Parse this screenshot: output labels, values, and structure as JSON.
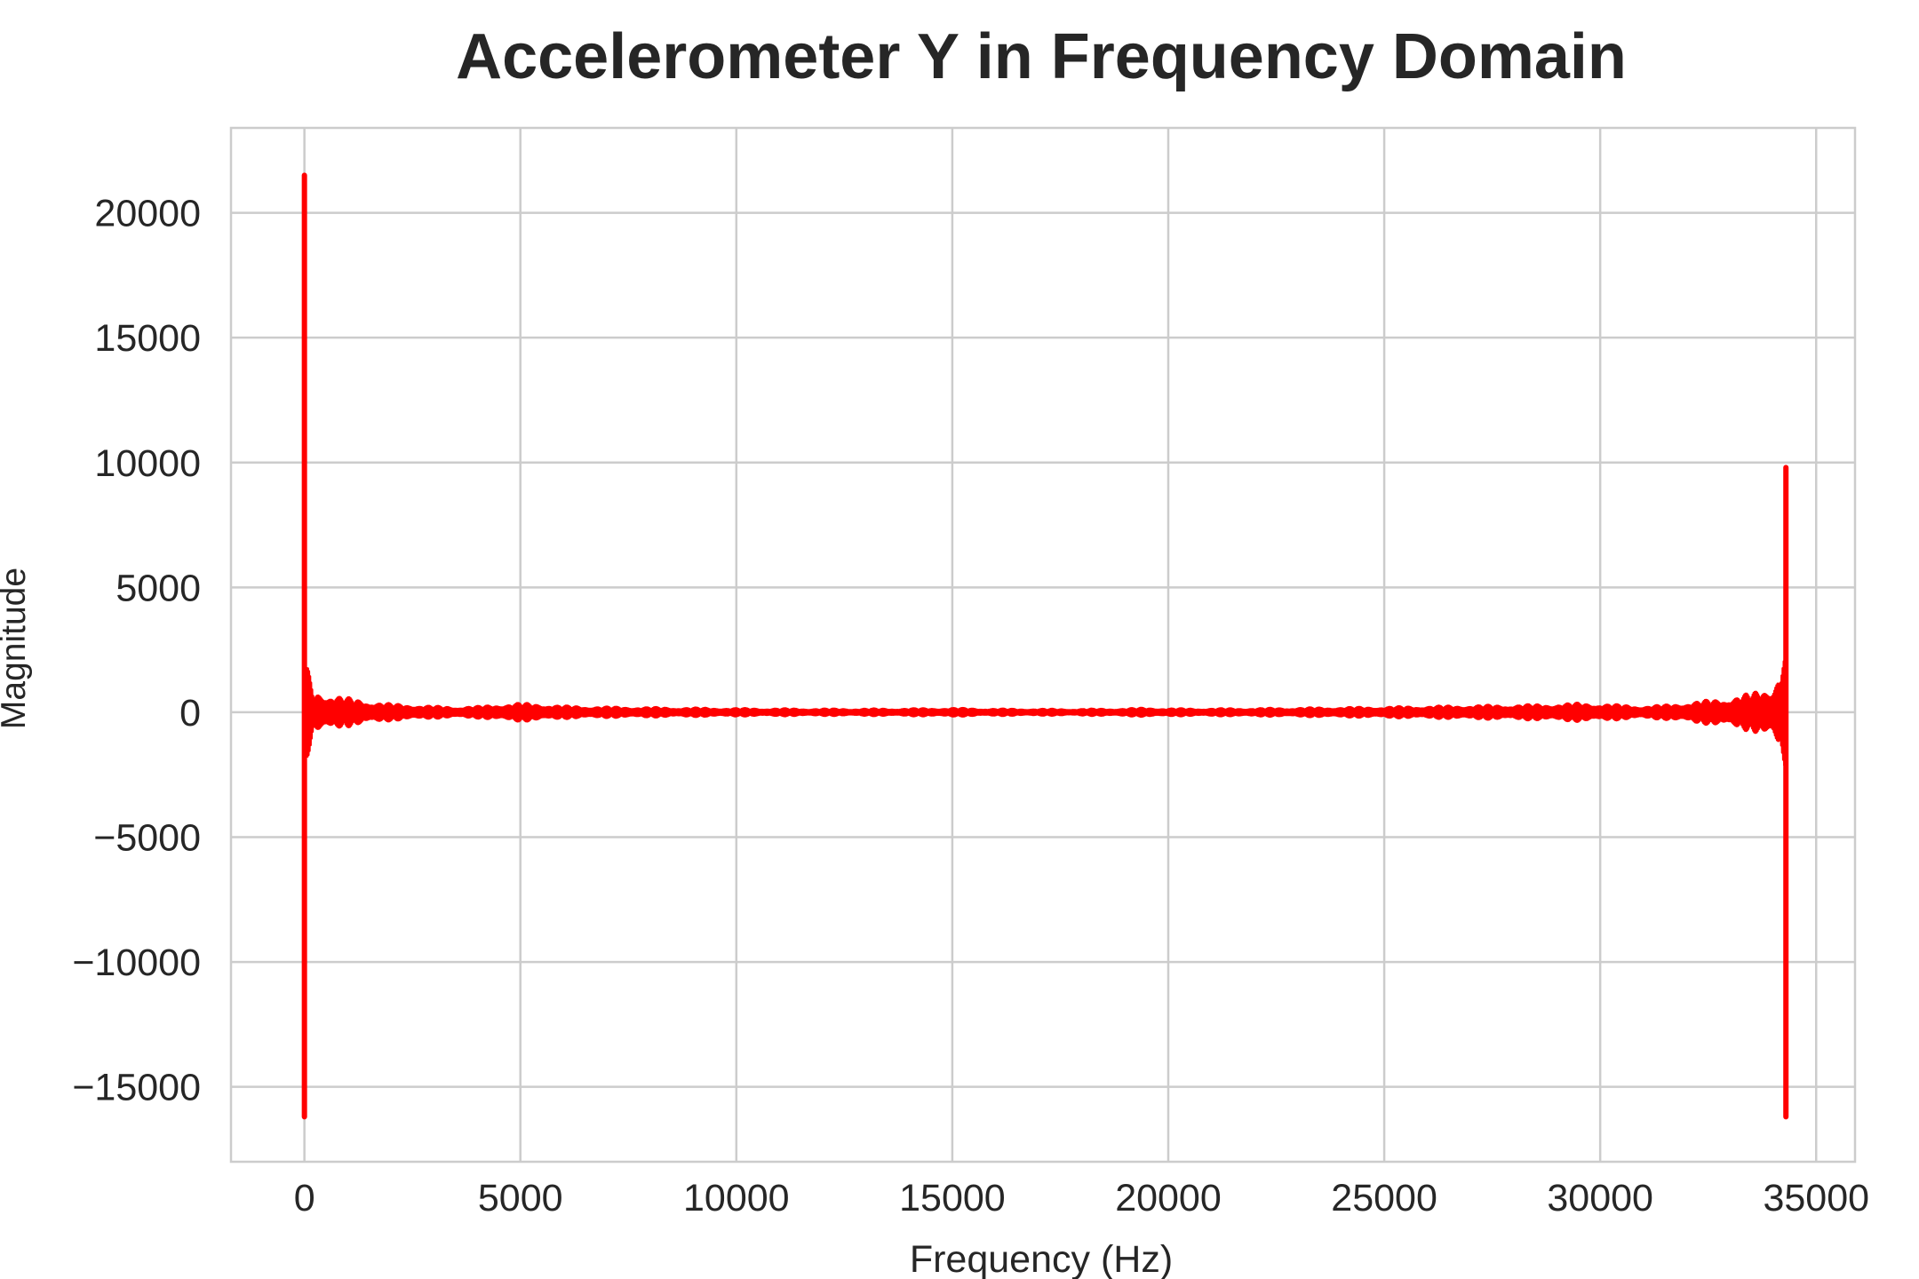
{
  "chart_data": {
    "type": "line",
    "title": "Accelerometer Y in Frequency Domain",
    "xlabel": "Frequency (Hz)",
    "ylabel": "Magnitude",
    "xlim": [
      -1700,
      35900
    ],
    "ylim": [
      -18000,
      23400
    ],
    "grid": true,
    "legend": "none",
    "x_ticks": [
      0,
      5000,
      10000,
      15000,
      20000,
      25000,
      30000,
      35000
    ],
    "x_tick_labels": [
      "0",
      "5000",
      "10000",
      "15000",
      "20000",
      "25000",
      "30000",
      "35000"
    ],
    "y_ticks": [
      20000,
      15000,
      10000,
      5000,
      0,
      -5000,
      -10000,
      -15000
    ],
    "y_tick_labels": [
      "20000",
      "15000",
      "10000",
      "5000",
      "0",
      "−5000",
      "−10000",
      "−15000"
    ],
    "series": [
      {
        "color": "#ff0000",
        "x_range": [
          0,
          34300
        ],
        "spikes": [
          {
            "x": 0,
            "y_max": 21500,
            "y_min": -16200
          },
          {
            "x": 34300,
            "y_max": 9800,
            "y_min": -16200
          }
        ],
        "envelope_x": [
          0,
          200,
          400,
          700,
          1000,
          1500,
          2000,
          2500,
          3000,
          3500,
          4000,
          4500,
          5000,
          5500,
          6000,
          7000,
          8000,
          9000,
          10000,
          11000,
          12000,
          13000,
          14000,
          15000,
          16000,
          17000,
          18000,
          19000,
          19500,
          20000,
          21000,
          22000,
          23000,
          24000,
          25000,
          26000,
          27000,
          28000,
          29000,
          29500,
          30000,
          30500,
          31000,
          31500,
          32000,
          32500,
          33000,
          33500,
          34000,
          34300
        ],
        "envelope_amp": [
          2500,
          900,
          800,
          700,
          600,
          450,
          350,
          300,
          250,
          220,
          240,
          320,
          380,
          330,
          260,
          220,
          200,
          180,
          160,
          150,
          140,
          140,
          150,
          170,
          140,
          130,
          130,
          150,
          180,
          150,
          150,
          160,
          180,
          200,
          220,
          250,
          280,
          300,
          340,
          380,
          350,
          300,
          250,
          300,
          400,
          500,
          600,
          800,
          1100,
          2500
        ]
      }
    ]
  }
}
